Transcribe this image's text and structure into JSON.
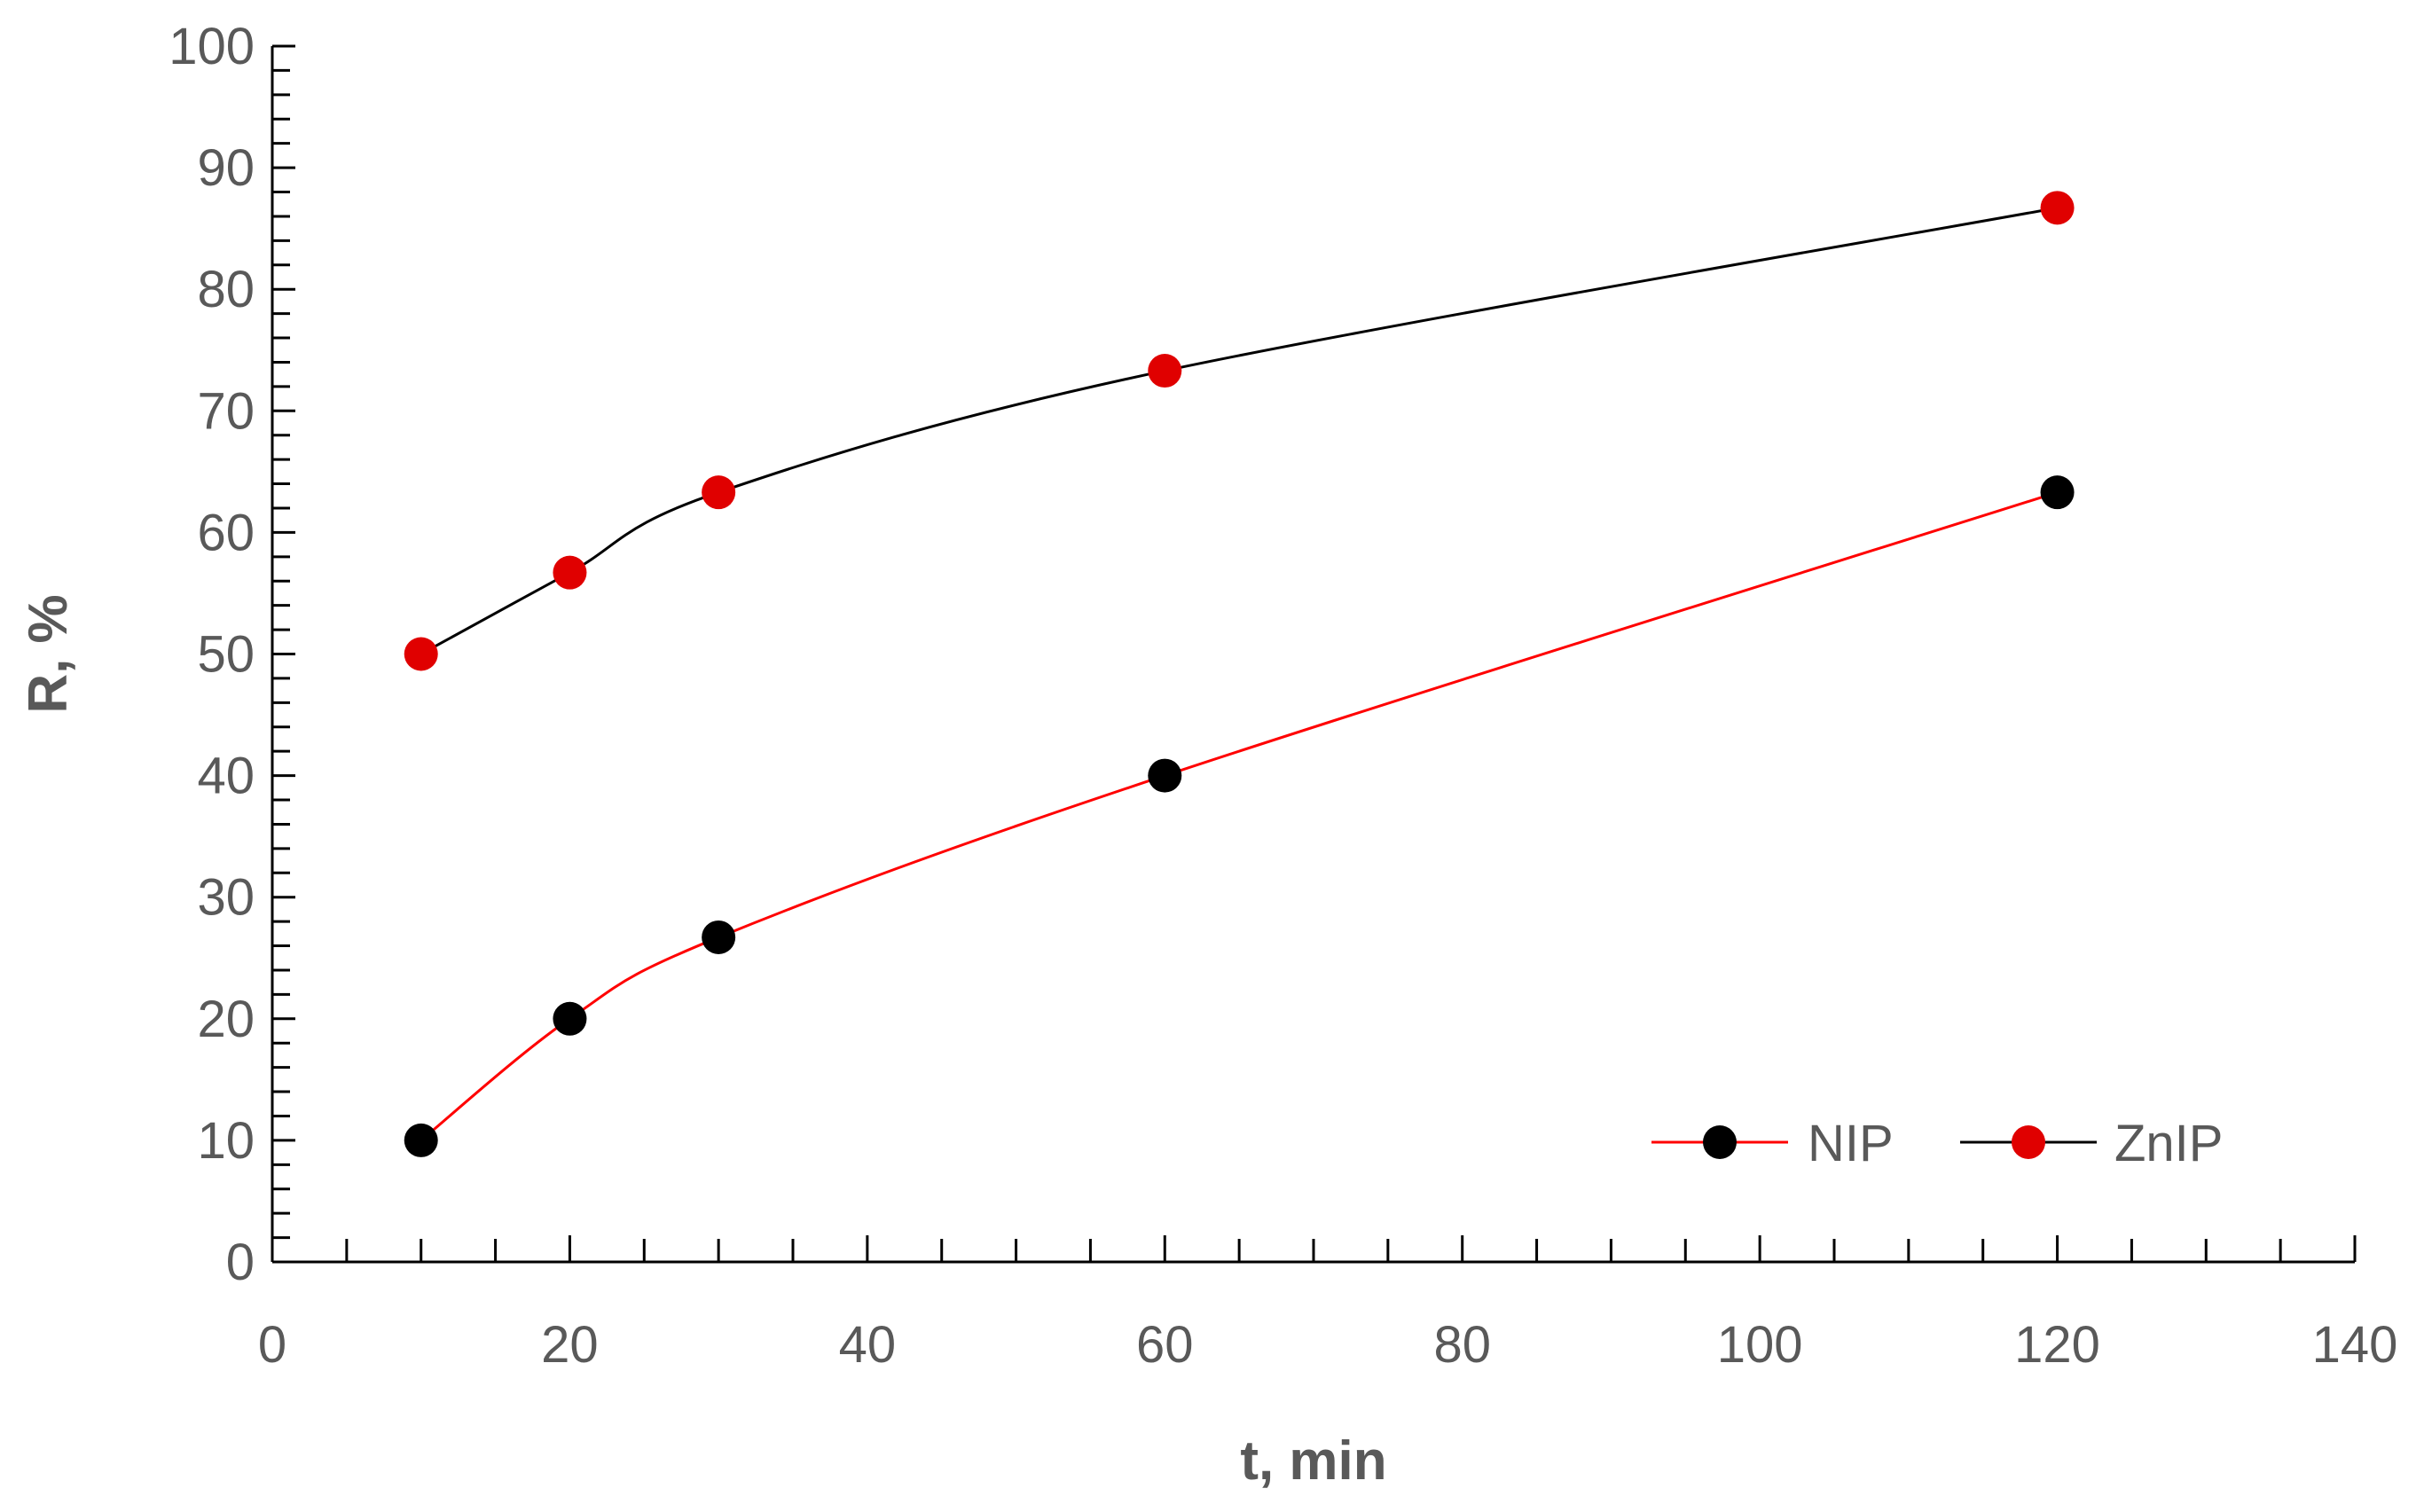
{
  "chart_data": {
    "type": "line",
    "title": "",
    "xlabel": "t, min",
    "ylabel": "R, %",
    "xlim": [
      0,
      140
    ],
    "ylim": [
      0,
      100
    ],
    "x_ticks": [
      "0",
      "20",
      "40",
      "60",
      "80",
      "100",
      "120",
      "140"
    ],
    "y_ticks": [
      "0",
      "10",
      "20",
      "30",
      "40",
      "50",
      "60",
      "70",
      "80",
      "90",
      "100"
    ],
    "grid": false,
    "smooth": true,
    "legend_position": "bottom-right",
    "series": [
      {
        "name": "NIP",
        "line_color": "#ff0000",
        "marker_color": "#000000",
        "x": [
          10,
          20,
          30,
          60,
          120
        ],
        "y": [
          10,
          20,
          26.7,
          40,
          63.3
        ]
      },
      {
        "name": "ZnIP",
        "line_color": "#000000",
        "marker_color": "#e00000",
        "x": [
          10,
          20,
          30,
          60,
          120
        ],
        "y": [
          50,
          56.7,
          63.3,
          73.3,
          86.7
        ]
      }
    ]
  }
}
